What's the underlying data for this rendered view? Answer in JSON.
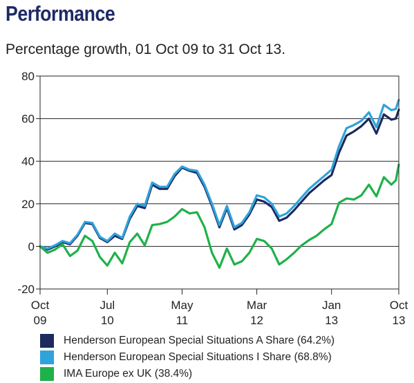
{
  "header": {
    "title": "Performance",
    "subtitle": "Percentage growth, 01 Oct 09 to 31 Oct 13."
  },
  "chart_data": {
    "type": "line",
    "title": "",
    "xlabel": "",
    "ylabel": "",
    "ylim": [
      -20,
      80
    ],
    "yticks": [
      -20,
      0,
      20,
      40,
      60,
      80
    ],
    "yticklabels": [
      "-20",
      "0",
      "20",
      "40",
      "60",
      "80"
    ],
    "xlim": [
      0,
      48
    ],
    "xticks": [
      {
        "pos": 0,
        "line1": "Oct",
        "line2": "09"
      },
      {
        "pos": 9,
        "line1": "Jul",
        "line2": "10"
      },
      {
        "pos": 19,
        "line1": "May",
        "line2": "11"
      },
      {
        "pos": 29,
        "line1": "Mar",
        "line2": "12"
      },
      {
        "pos": 39,
        "line1": "Jan",
        "line2": "13"
      },
      {
        "pos": 48,
        "line1": "Oct",
        "line2": "13"
      }
    ],
    "grid": "horizontal",
    "legend_position": "bottom",
    "series": [
      {
        "name": "Henderson European Special Situations A Share (64.2%)",
        "color": "#1c2a5e",
        "points": [
          [
            0,
            0
          ],
          [
            1,
            -1.5
          ],
          [
            2,
            0
          ],
          [
            3,
            2
          ],
          [
            4,
            1
          ],
          [
            5,
            5
          ],
          [
            6,
            11
          ],
          [
            7,
            10.5
          ],
          [
            8,
            4
          ],
          [
            9,
            2
          ],
          [
            10,
            5
          ],
          [
            11,
            3.5
          ],
          [
            12,
            13
          ],
          [
            13,
            19
          ],
          [
            14,
            18
          ],
          [
            15,
            29
          ],
          [
            16,
            27
          ],
          [
            17,
            27
          ],
          [
            18,
            33
          ],
          [
            19,
            37
          ],
          [
            20,
            35.5
          ],
          [
            21,
            34.5
          ],
          [
            22,
            28
          ],
          [
            23,
            19
          ],
          [
            24,
            9
          ],
          [
            25,
            18
          ],
          [
            26,
            8
          ],
          [
            27,
            10
          ],
          [
            28,
            15
          ],
          [
            29,
            22
          ],
          [
            30,
            21
          ],
          [
            31,
            18.5
          ],
          [
            32,
            12
          ],
          [
            33,
            13.5
          ],
          [
            34,
            17
          ],
          [
            35,
            21
          ],
          [
            36,
            25
          ],
          [
            37,
            28
          ],
          [
            38,
            31
          ],
          [
            39,
            33.5
          ],
          [
            40,
            44
          ],
          [
            41,
            52
          ],
          [
            42,
            54
          ],
          [
            43,
            56.5
          ],
          [
            44,
            60
          ],
          [
            45,
            53
          ],
          [
            46,
            62
          ],
          [
            47,
            59.5
          ],
          [
            47.6,
            60
          ],
          [
            48,
            64.2
          ]
        ]
      },
      {
        "name": "Henderson European Special Situations I Share (68.8%)",
        "color": "#2ea3dc",
        "points": [
          [
            0,
            0
          ],
          [
            1,
            -1
          ],
          [
            2,
            0.5
          ],
          [
            3,
            2.5
          ],
          [
            4,
            1.5
          ],
          [
            5,
            5.5
          ],
          [
            6,
            11.5
          ],
          [
            7,
            11
          ],
          [
            8,
            4.5
          ],
          [
            9,
            2.5
          ],
          [
            10,
            6
          ],
          [
            11,
            4
          ],
          [
            12,
            14
          ],
          [
            13,
            20
          ],
          [
            14,
            19
          ],
          [
            15,
            30
          ],
          [
            16,
            28
          ],
          [
            17,
            28
          ],
          [
            18,
            34
          ],
          [
            19,
            37.5
          ],
          [
            20,
            36
          ],
          [
            21,
            35.5
          ],
          [
            22,
            29
          ],
          [
            23,
            20
          ],
          [
            24,
            10
          ],
          [
            25,
            19
          ],
          [
            26,
            9
          ],
          [
            27,
            11
          ],
          [
            28,
            16
          ],
          [
            29,
            24
          ],
          [
            30,
            23
          ],
          [
            31,
            20
          ],
          [
            32,
            14
          ],
          [
            33,
            15.5
          ],
          [
            34,
            19
          ],
          [
            35,
            23
          ],
          [
            36,
            27
          ],
          [
            37,
            30
          ],
          [
            38,
            33
          ],
          [
            39,
            36
          ],
          [
            40,
            47
          ],
          [
            41,
            55.5
          ],
          [
            42,
            57
          ],
          [
            43,
            59
          ],
          [
            44,
            63
          ],
          [
            45,
            56
          ],
          [
            46,
            66.5
          ],
          [
            47,
            64
          ],
          [
            47.6,
            64.5
          ],
          [
            48,
            68.8
          ]
        ]
      },
      {
        "name": "IMA Europe ex UK (38.4%)",
        "color": "#1fb14a",
        "points": [
          [
            0,
            0
          ],
          [
            1,
            -3
          ],
          [
            2,
            -1.5
          ],
          [
            3,
            1
          ],
          [
            4,
            -4.5
          ],
          [
            5,
            -2
          ],
          [
            6,
            5
          ],
          [
            7,
            2.5
          ],
          [
            8,
            -5
          ],
          [
            9,
            -9
          ],
          [
            10,
            -3
          ],
          [
            11,
            -8
          ],
          [
            12,
            2
          ],
          [
            13,
            6
          ],
          [
            14,
            0.5
          ],
          [
            15,
            10
          ],
          [
            16,
            10.5
          ],
          [
            17,
            11.5
          ],
          [
            18,
            14
          ],
          [
            19,
            17.5
          ],
          [
            20,
            15.5
          ],
          [
            21,
            16
          ],
          [
            22,
            9
          ],
          [
            23,
            -3
          ],
          [
            24,
            -10
          ],
          [
            25,
            -1
          ],
          [
            26,
            -8.5
          ],
          [
            27,
            -7
          ],
          [
            28,
            -3
          ],
          [
            29,
            3.5
          ],
          [
            30,
            2.5
          ],
          [
            31,
            -1
          ],
          [
            32,
            -8.5
          ],
          [
            33,
            -6
          ],
          [
            34,
            -3
          ],
          [
            35,
            0.5
          ],
          [
            36,
            3
          ],
          [
            37,
            5
          ],
          [
            38,
            8
          ],
          [
            39,
            10.5
          ],
          [
            40,
            20.5
          ],
          [
            41,
            22.5
          ],
          [
            42,
            22
          ],
          [
            43,
            24
          ],
          [
            44,
            29
          ],
          [
            45,
            23.5
          ],
          [
            46,
            32.5
          ],
          [
            47,
            29
          ],
          [
            47.6,
            31
          ],
          [
            48,
            38.4
          ]
        ]
      }
    ]
  }
}
